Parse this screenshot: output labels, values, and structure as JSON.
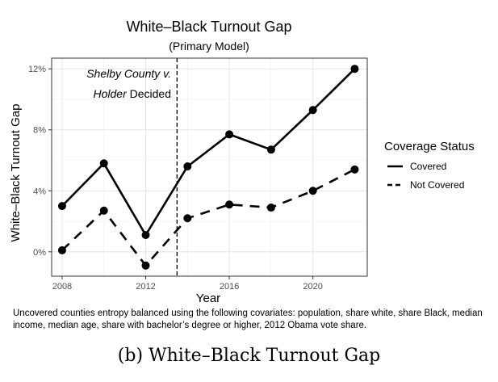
{
  "chart_data": {
    "type": "line",
    "title": "White–Black Turnout Gap",
    "subtitle": "(Primary Model)",
    "xlabel": "Year",
    "ylabel": "White–Black Turnout Gap",
    "x_ticks": [
      2008,
      2012,
      2016,
      2020
    ],
    "y_ticks": [
      0,
      4,
      8,
      12
    ],
    "y_tick_labels": [
      "0%",
      "4%",
      "8%",
      "12%"
    ],
    "xlim": [
      2007.5,
      2022.6
    ],
    "ylim": [
      -1.6,
      12.7
    ],
    "grid": true,
    "vline": {
      "x": 2013.5
    },
    "annotation": {
      "line1": "Shelby County v.",
      "line2_italic": "Holder",
      "line2_rest": "Decided"
    },
    "legend": {
      "title": "Coverage Status",
      "position": "right"
    },
    "series": [
      {
        "name": "Covered",
        "style": "solid",
        "x": [
          2008,
          2010,
          2012,
          2014,
          2016,
          2018,
          2020,
          2022
        ],
        "values": [
          3.0,
          5.8,
          1.1,
          5.6,
          7.7,
          6.7,
          9.3,
          12.0
        ]
      },
      {
        "name": "Not Covered",
        "style": "dashed",
        "x": [
          2008,
          2010,
          2012,
          2014,
          2016,
          2018,
          2020,
          2022
        ],
        "values": [
          0.1,
          2.7,
          -0.9,
          2.2,
          3.1,
          2.9,
          4.0,
          5.4
        ]
      }
    ]
  },
  "note": "Uncovered counties entropy balanced using the following covariates: population, share white, share Black, median income, median age, share with bachelor’s degree or higher, 2012 Obama vote share.",
  "caption": "(b) White–Black Turnout Gap"
}
